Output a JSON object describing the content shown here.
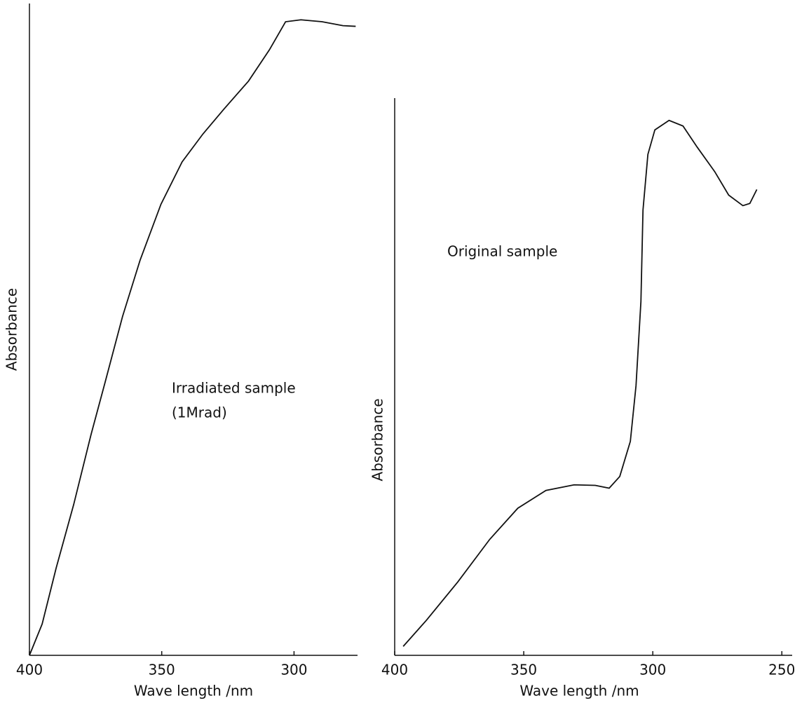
{
  "chart_data": [
    {
      "type": "line",
      "xlabel": "Wave length /nm",
      "ylabel": "Absorbance",
      "annotation": [
        "Irradiated sample",
        "(1Mrad)"
      ],
      "xlim": [
        400,
        276
      ],
      "xticks": [
        400,
        350,
        300
      ],
      "ylim": [
        0,
        1
      ],
      "color": "#111111",
      "x": [
        400,
        395.2,
        389.9,
        383.3,
        376.7,
        371.4,
        364.8,
        358.2,
        350.3,
        342.3,
        334.4,
        326.5,
        317.2,
        309.3,
        303.2,
        297.4,
        289.4,
        281.5,
        276.7
      ],
      "values": [
        0,
        0.048,
        0.134,
        0.231,
        0.339,
        0.419,
        0.52,
        0.606,
        0.692,
        0.757,
        0.8,
        0.838,
        0.881,
        0.929,
        0.972,
        0.975,
        0.972,
        0.966,
        0.965
      ]
    },
    {
      "type": "line",
      "xlabel": "Wave length /nm",
      "ylabel": "Absorbance",
      "annotation": [
        "Original sample"
      ],
      "xlim": [
        400,
        246
      ],
      "xticks": [
        400,
        350,
        300,
        250
      ],
      "ylim": [
        0,
        1
      ],
      "color": "#111111",
      "x": [
        396.7,
        387.7,
        375.5,
        363.2,
        352.3,
        341.4,
        330.5,
        322.3,
        316.9,
        312.8,
        308.7,
        306.5,
        304.6,
        303.8,
        301.9,
        299.2,
        293.7,
        288.3,
        282.8,
        276.0,
        270.6,
        265.1,
        262.4,
        259.7
      ],
      "values": [
        0.016,
        0.063,
        0.132,
        0.208,
        0.264,
        0.296,
        0.306,
        0.305,
        0.3,
        0.321,
        0.384,
        0.484,
        0.635,
        0.799,
        0.899,
        0.943,
        0.96,
        0.95,
        0.912,
        0.868,
        0.826,
        0.807,
        0.811,
        0.836
      ]
    }
  ]
}
